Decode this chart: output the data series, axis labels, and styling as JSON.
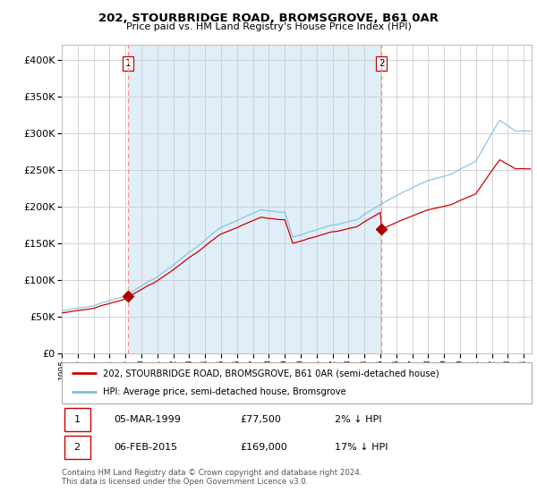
{
  "title": "202, STOURBRIDGE ROAD, BROMSGROVE, B61 0AR",
  "subtitle": "Price paid vs. HM Land Registry's House Price Index (HPI)",
  "legend_line1": "202, STOURBRIDGE ROAD, BROMSGROVE, B61 0AR (semi-detached house)",
  "legend_line2": "HPI: Average price, semi-detached house, Bromsgrove",
  "annotation1_date": "05-MAR-1999",
  "annotation1_price": "£77,500",
  "annotation1_hpi": "2% ↓ HPI",
  "annotation2_date": "06-FEB-2015",
  "annotation2_price": "£169,000",
  "annotation2_hpi": "17% ↓ HPI",
  "footer": "Contains HM Land Registry data © Crown copyright and database right 2024.\nThis data is licensed under the Open Government Licence v3.0.",
  "sale1_year": 1999.17,
  "sale1_price": 77500,
  "sale2_year": 2015.08,
  "sale2_price": 169000,
  "hpi_color": "#7fbfdf",
  "price_color": "#cc0000",
  "vline_color": "#ff8888",
  "dot_color": "#aa0000",
  "shade_color": "#e0eef8",
  "ylim": [
    0,
    420000
  ],
  "xlim_start": 1995.0,
  "xlim_end": 2024.5
}
